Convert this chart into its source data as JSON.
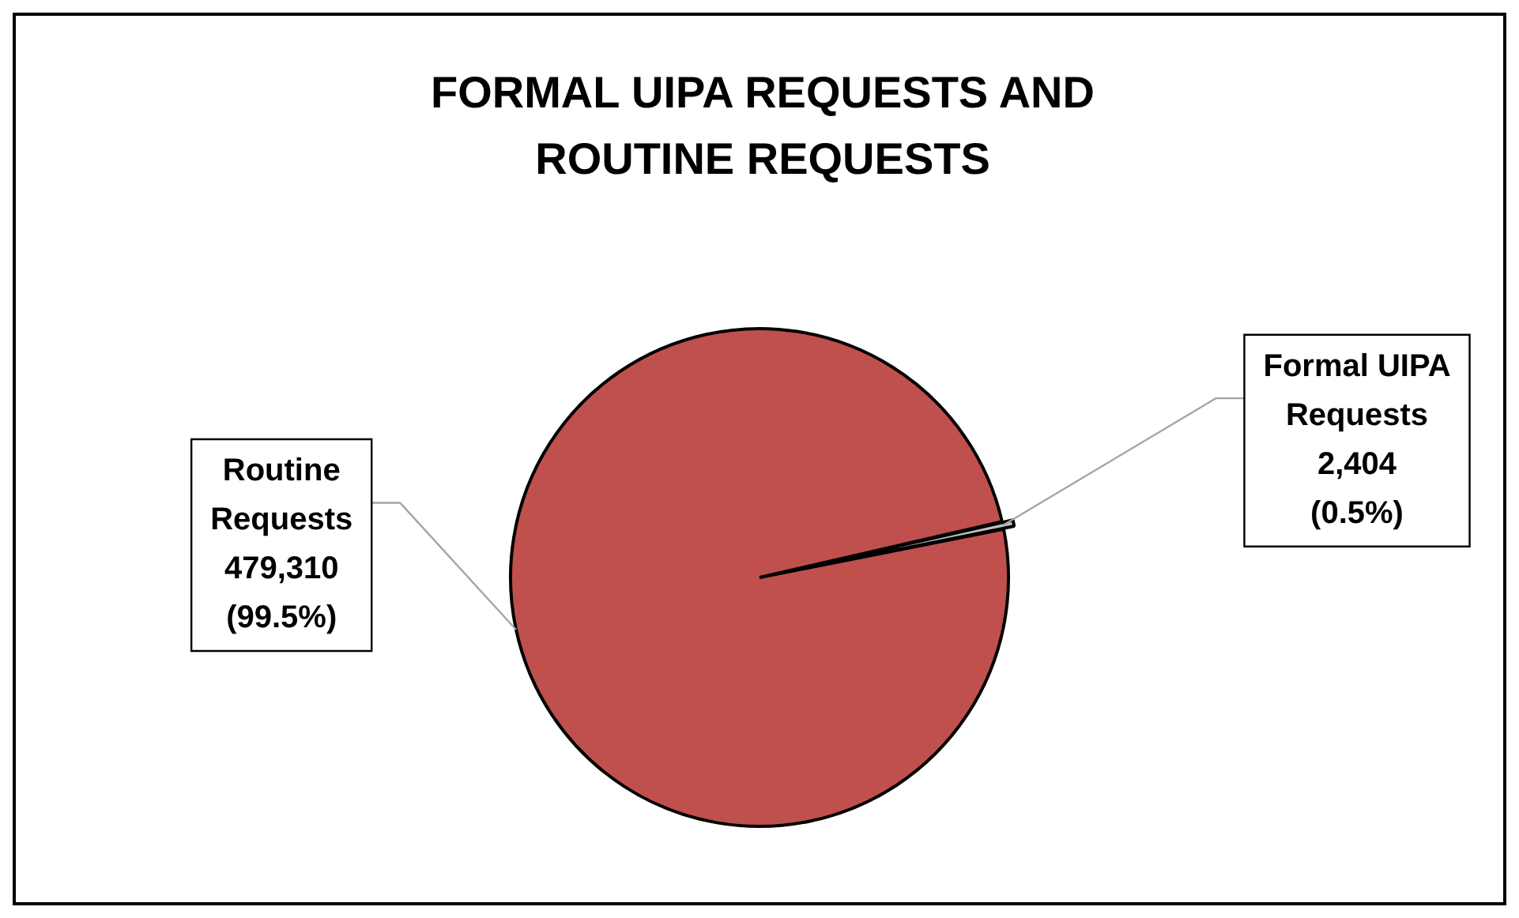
{
  "chart_data": {
    "type": "pie",
    "title": "FORMAL UIPA REQUESTS AND ROUTINE REQUESTS",
    "categories": [
      "Formal UIPA Requests",
      "Routine Requests"
    ],
    "values": [
      2404,
      479310
    ],
    "colors": [
      "#c0c0c0",
      "#c0504d"
    ],
    "value_labels": [
      "2,404 (0.5%)",
      "479,310 (99.5%)"
    ],
    "legend": false
  }
}
